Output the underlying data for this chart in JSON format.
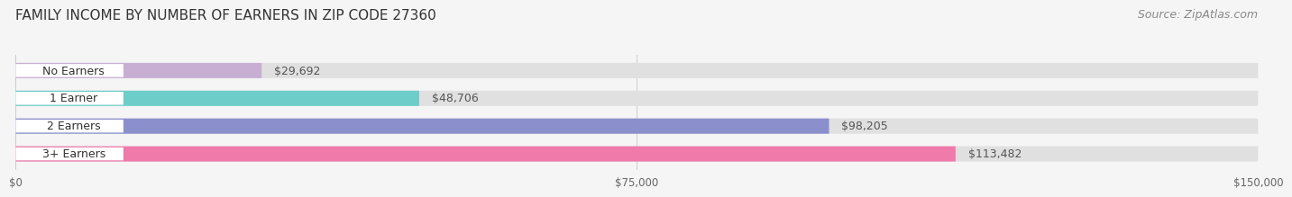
{
  "title": "FAMILY INCOME BY NUMBER OF EARNERS IN ZIP CODE 27360",
  "source": "Source: ZipAtlas.com",
  "categories": [
    "No Earners",
    "1 Earner",
    "2 Earners",
    "3+ Earners"
  ],
  "values": [
    29692,
    48706,
    98205,
    113482
  ],
  "bar_colors": [
    "#c9aed4",
    "#6dcdc8",
    "#8b8fcc",
    "#f07aaa"
  ],
  "bar_labels": [
    "$29,692",
    "$48,706",
    "$98,205",
    "$113,482"
  ],
  "xlim": [
    0,
    150000
  ],
  "xticks": [
    0,
    75000,
    150000
  ],
  "xtick_labels": [
    "$0",
    "$75,000",
    "$150,000"
  ],
  "background_color": "#f5f5f5",
  "bar_bg_color": "#e0e0e0",
  "title_fontsize": 11,
  "source_fontsize": 9,
  "label_fontsize": 9,
  "category_fontsize": 9,
  "bar_height": 0.55
}
